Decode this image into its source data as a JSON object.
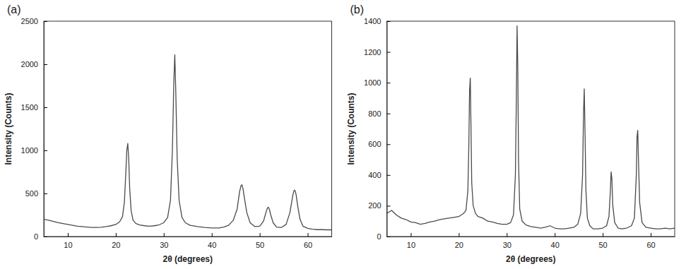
{
  "chart_data": [
    {
      "type": "line",
      "title": "(a)",
      "x_label": "2θ (degrees)",
      "y_label": "Intensity (Counts)",
      "xlim": [
        5,
        65
      ],
      "ylim": [
        0,
        2500
      ],
      "xticks": [
        10,
        20,
        30,
        40,
        50,
        60
      ],
      "yticks": [
        0,
        500,
        1000,
        1500,
        2000,
        2500
      ],
      "grid": false,
      "x": [
        5,
        6,
        7,
        8,
        9,
        10,
        11,
        12,
        13,
        14,
        15,
        16,
        17,
        18,
        19,
        20,
        20.8,
        21.4,
        21.8,
        22.1,
        22.3,
        22.5,
        22.7,
        22.9,
        23.2,
        23.6,
        24.2,
        25,
        26,
        27,
        28,
        29,
        30,
        30.8,
        31.4,
        31.8,
        32.1,
        32.3,
        32.5,
        32.8,
        33.2,
        33.8,
        34.5,
        35.5,
        37,
        38.5,
        40,
        41.5,
        42.5,
        43.5,
        44.5,
        45.3,
        45.8,
        46.1,
        46.3,
        46.5,
        46.8,
        47.3,
        48,
        49,
        50,
        50.8,
        51.3,
        51.6,
        51.8,
        52,
        52.3,
        52.8,
        53.5,
        54.5,
        55.5,
        56.3,
        56.9,
        57.2,
        57.4,
        57.6,
        57.9,
        58.4,
        59,
        60,
        61,
        62,
        63,
        64,
        65
      ],
      "series": [
        {
          "color": "#4a4a4a",
          "values": [
            200,
            190,
            175,
            160,
            150,
            140,
            130,
            120,
            115,
            110,
            105,
            105,
            108,
            115,
            125,
            140,
            170,
            230,
            400,
            750,
            1000,
            1080,
            900,
            560,
            300,
            190,
            150,
            135,
            125,
            120,
            125,
            135,
            160,
            220,
            420,
            1000,
            1800,
            2110,
            1700,
            900,
            420,
            220,
            160,
            130,
            115,
            105,
            100,
            100,
            110,
            130,
            190,
            320,
            520,
            590,
            600,
            560,
            450,
            280,
            160,
            115,
            120,
            180,
            280,
            330,
            340,
            320,
            250,
            160,
            110,
            105,
            140,
            280,
            480,
            540,
            530,
            480,
            360,
            200,
            120,
            95,
            85,
            80,
            80,
            78,
            78
          ]
        }
      ]
    },
    {
      "type": "line",
      "title": "(b)",
      "x_label": "2θ (degrees)",
      "y_label": "Intensity (Counts)",
      "xlim": [
        5,
        65
      ],
      "ylim": [
        0,
        1400
      ],
      "xticks": [
        10,
        20,
        30,
        40,
        50,
        60
      ],
      "yticks": [
        0,
        200,
        400,
        600,
        800,
        1000,
        1200,
        1400
      ],
      "grid": false,
      "x": [
        5,
        6,
        7,
        8,
        9,
        10,
        11,
        12,
        13,
        14,
        15,
        16,
        17,
        18,
        19,
        20,
        20.5,
        21,
        21.5,
        21.9,
        22.1,
        22.25,
        22.4,
        22.55,
        22.7,
        23,
        23.5,
        24,
        25,
        26,
        27,
        28,
        29,
        30,
        30.8,
        31.4,
        31.8,
        32,
        32.15,
        32.3,
        32.45,
        32.7,
        33.2,
        34,
        35,
        36,
        37,
        38,
        39,
        40,
        41,
        42,
        43,
        44,
        44.8,
        45.4,
        45.8,
        46,
        46.15,
        46.3,
        46.5,
        46.8,
        47.3,
        48,
        49,
        50,
        50.8,
        51.3,
        51.6,
        51.75,
        51.9,
        52.1,
        52.5,
        53.2,
        54,
        55,
        56,
        56.6,
        57,
        57.15,
        57.3,
        57.45,
        57.7,
        58.2,
        59,
        60,
        61,
        62,
        63,
        64,
        65
      ],
      "series": [
        {
          "color": "#4a4a4a",
          "values": [
            150,
            170,
            140,
            120,
            110,
            95,
            90,
            80,
            85,
            95,
            100,
            110,
            115,
            120,
            125,
            130,
            140,
            150,
            170,
            300,
            600,
            950,
            1030,
            700,
            350,
            200,
            150,
            130,
            120,
            100,
            95,
            85,
            80,
            80,
            90,
            140,
            400,
            900,
            1370,
            1100,
            500,
            180,
            100,
            75,
            65,
            60,
            55,
            60,
            70,
            55,
            50,
            50,
            55,
            60,
            80,
            150,
            400,
            800,
            960,
            700,
            300,
            120,
            70,
            50,
            50,
            55,
            70,
            130,
            300,
            420,
            380,
            200,
            90,
            55,
            50,
            55,
            70,
            120,
            400,
            650,
            690,
            500,
            220,
            90,
            60,
            55,
            50,
            50,
            55,
            50,
            55
          ]
        }
      ]
    }
  ]
}
